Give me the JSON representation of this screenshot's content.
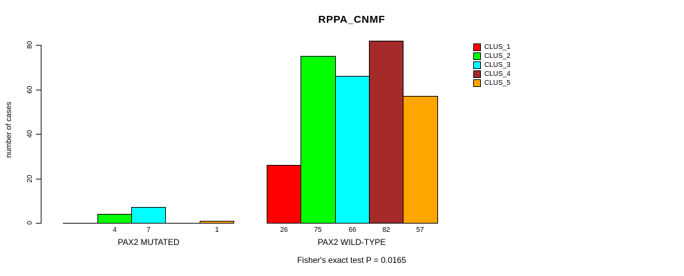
{
  "chart_data": {
    "type": "bar",
    "title": "RPPA_CNMF",
    "ylabel": "number of cases",
    "xlabel": "",
    "subtitle": "Fisher's exact test P = 0.0165",
    "ylim": [
      0,
      80
    ],
    "yticks": [
      0,
      20,
      40,
      60,
      80
    ],
    "categories": [
      "PAX2 MUTATED",
      "PAX2 WILD-TYPE"
    ],
    "series": [
      {
        "name": "CLUS_1",
        "color": "#FF0000",
        "values": [
          0,
          26
        ]
      },
      {
        "name": "CLUS_2",
        "color": "#00FF00",
        "values": [
          4,
          75
        ]
      },
      {
        "name": "CLUS_3",
        "color": "#00FFFF",
        "values": [
          7,
          66
        ]
      },
      {
        "name": "CLUS_4",
        "color": "#A52A2A",
        "values": [
          0,
          82
        ]
      },
      {
        "name": "CLUS_5",
        "color": "#FFA500",
        "values": [
          1,
          57
        ]
      }
    ],
    "legend": {
      "position": "topright",
      "entries": [
        "CLUS_1",
        "CLUS_2",
        "CLUS_3",
        "CLUS_4",
        "CLUS_5"
      ]
    },
    "bar_value_labels": {
      "shown": true,
      "hidden_when_zero": true
    },
    "grid": false,
    "axis_color": "#000000",
    "background_color": "#FFFFFF",
    "text_color": "#000000"
  }
}
